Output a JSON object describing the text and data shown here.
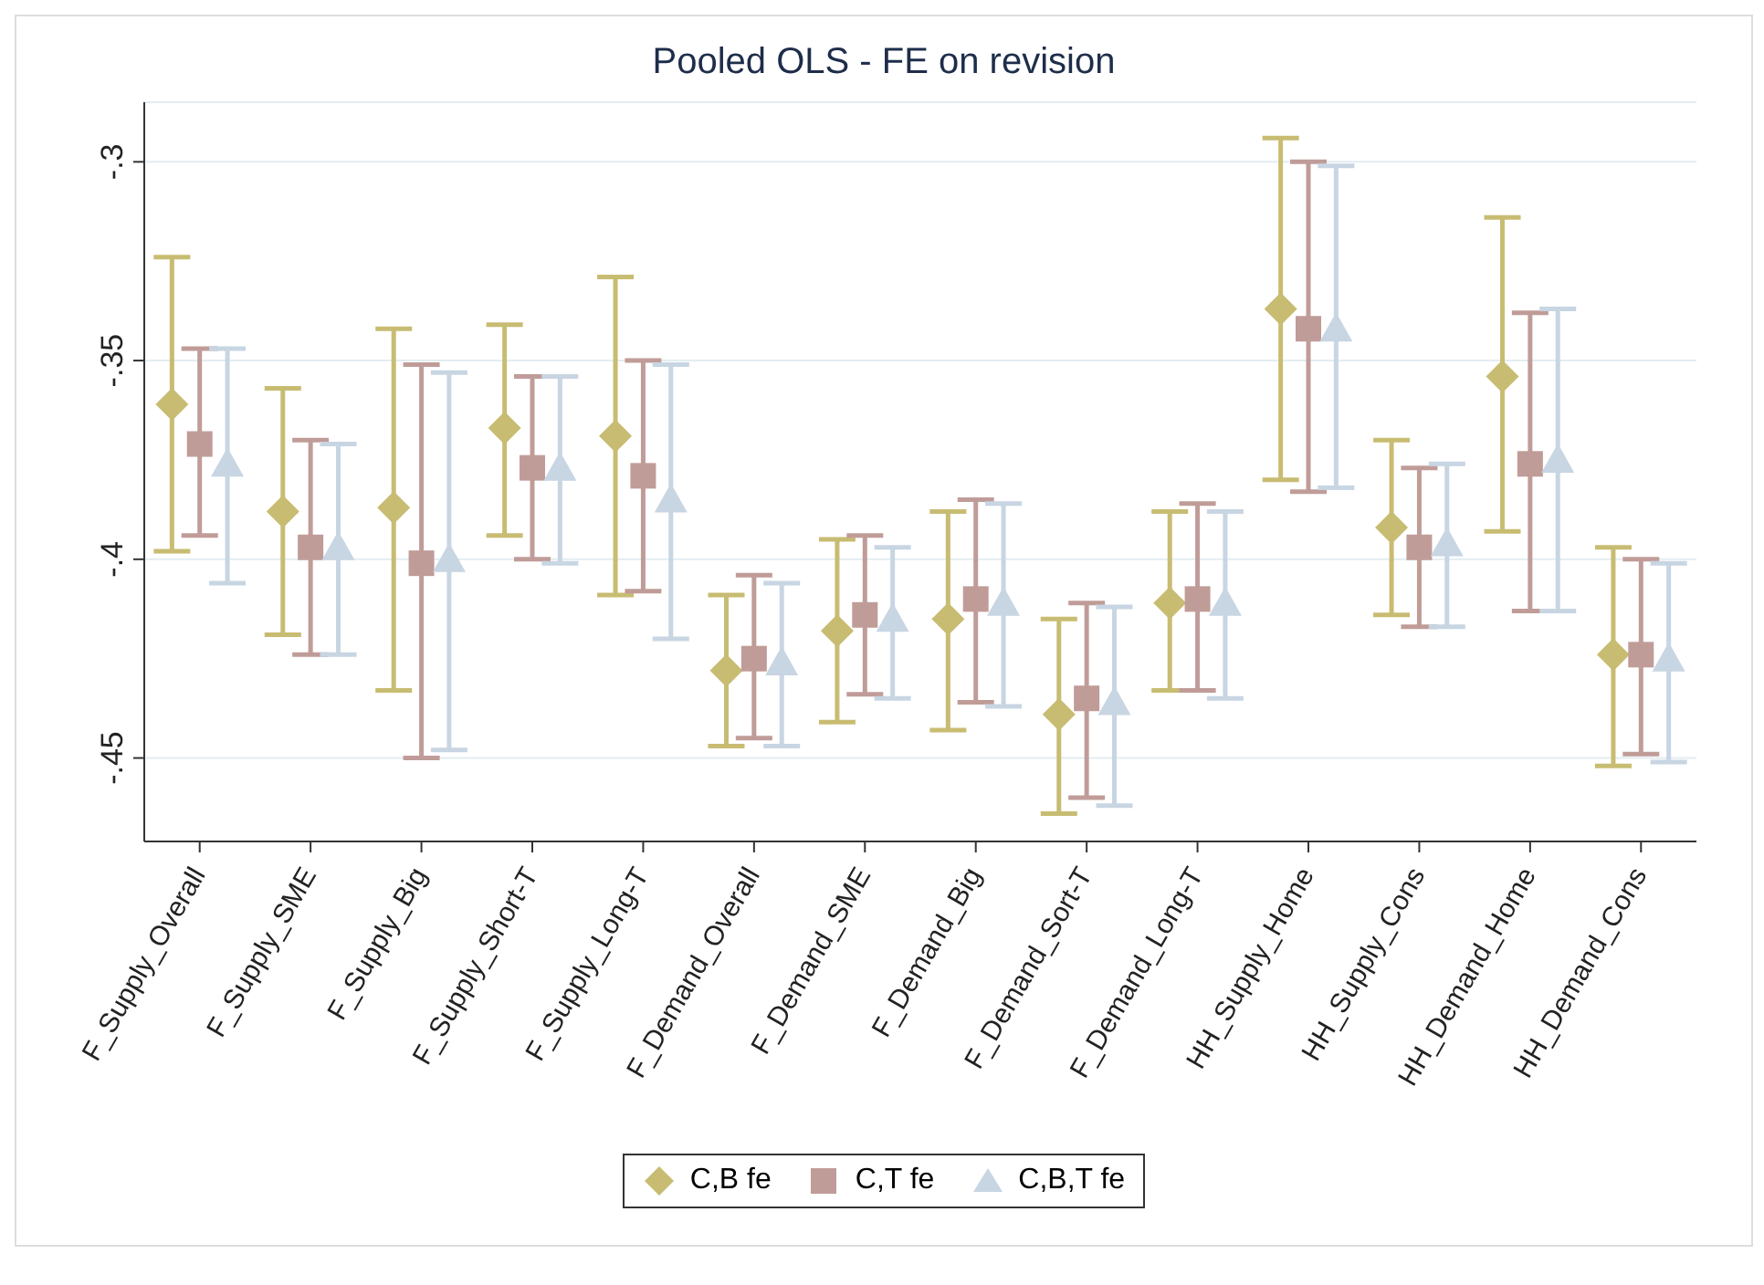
{
  "chart_data": {
    "type": "scatter",
    "title": "Pooled OLS - FE on revision",
    "categories": [
      "F_Supply_Overall",
      "F_Supply_SME",
      "F_Supply_Big",
      "F_Supply_Short-T",
      "F_Supply_Long-T",
      "F_Demand_Overall",
      "F_Demand_SME",
      "F_Demand_Big",
      "F_Demand_Sort-T",
      "F_Demand_Long-T",
      "HH_Supply_Home",
      "HH_Supply_Cons",
      "HH_Demand_Home",
      "HH_Demand_Cons"
    ],
    "series": [
      {
        "name": "C,B fe",
        "color": "#c8bc72",
        "marker": "diamond",
        "values": [
          -0.361,
          -0.388,
          -0.387,
          -0.367,
          -0.369,
          -0.428,
          -0.418,
          -0.415,
          -0.439,
          -0.411,
          -0.337,
          -0.392,
          -0.354,
          -0.424
        ],
        "errors": [
          [
            -0.398,
            -0.324
          ],
          [
            -0.419,
            -0.357
          ],
          [
            -0.433,
            -0.342
          ],
          [
            -0.394,
            -0.341
          ],
          [
            -0.409,
            -0.329
          ],
          [
            -0.447,
            -0.409
          ],
          [
            -0.441,
            -0.395
          ],
          [
            -0.443,
            -0.388
          ],
          [
            -0.464,
            -0.415
          ],
          [
            -0.433,
            -0.388
          ],
          [
            -0.38,
            -0.294
          ],
          [
            -0.414,
            -0.37
          ],
          [
            -0.393,
            -0.314
          ],
          [
            -0.452,
            -0.397
          ]
        ]
      },
      {
        "name": "C,T fe",
        "color": "#c09c98",
        "marker": "square",
        "values": [
          -0.371,
          -0.397,
          -0.401,
          -0.377,
          -0.379,
          -0.425,
          -0.414,
          -0.41,
          -0.435,
          -0.41,
          -0.342,
          -0.397,
          -0.376,
          -0.424
        ],
        "errors": [
          [
            -0.394,
            -0.347
          ],
          [
            -0.424,
            -0.37
          ],
          [
            -0.45,
            -0.351
          ],
          [
            -0.4,
            -0.354
          ],
          [
            -0.408,
            -0.35
          ],
          [
            -0.445,
            -0.404
          ],
          [
            -0.434,
            -0.394
          ],
          [
            -0.436,
            -0.385
          ],
          [
            -0.46,
            -0.411
          ],
          [
            -0.433,
            -0.386
          ],
          [
            -0.383,
            -0.3
          ],
          [
            -0.417,
            -0.377
          ],
          [
            -0.413,
            -0.338
          ],
          [
            -0.449,
            -0.4
          ]
        ]
      },
      {
        "name": "C,B,T fe",
        "color": "#c8d5e2",
        "marker": "triangle",
        "values": [
          -0.376,
          -0.397,
          -0.4,
          -0.377,
          -0.385,
          -0.426,
          -0.415,
          -0.411,
          -0.436,
          -0.411,
          -0.342,
          -0.396,
          -0.375,
          -0.425
        ],
        "errors": [
          [
            -0.406,
            -0.347
          ],
          [
            -0.424,
            -0.371
          ],
          [
            -0.448,
            -0.353
          ],
          [
            -0.401,
            -0.354
          ],
          [
            -0.42,
            -0.351
          ],
          [
            -0.447,
            -0.406
          ],
          [
            -0.435,
            -0.397
          ],
          [
            -0.437,
            -0.386
          ],
          [
            -0.462,
            -0.412
          ],
          [
            -0.435,
            -0.388
          ],
          [
            -0.382,
            -0.301
          ],
          [
            -0.417,
            -0.376
          ],
          [
            -0.413,
            -0.337
          ],
          [
            -0.451,
            -0.401
          ]
        ]
      }
    ],
    "ylim": [
      -0.471,
      -0.285
    ],
    "yticks": [
      {
        "value": -0.3,
        "label": "-.3"
      },
      {
        "value": -0.35,
        "label": "-.35"
      },
      {
        "value": -0.4,
        "label": "-.4"
      },
      {
        "value": -0.45,
        "label": "-.45"
      }
    ],
    "grid": "y",
    "legend": "bottom"
  }
}
